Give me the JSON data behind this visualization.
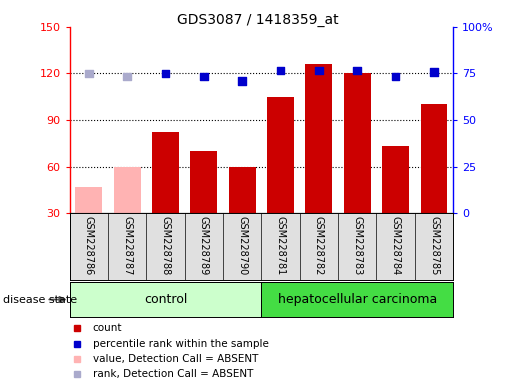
{
  "title": "GDS3087 / 1418359_at",
  "samples": [
    "GSM228786",
    "GSM228787",
    "GSM228788",
    "GSM228789",
    "GSM228790",
    "GSM228781",
    "GSM228782",
    "GSM228783",
    "GSM228784",
    "GSM228785"
  ],
  "bar_values": [
    47,
    60,
    82,
    70,
    60,
    105,
    126,
    120,
    73,
    100
  ],
  "bar_absent": [
    true,
    true,
    false,
    false,
    false,
    false,
    false,
    false,
    false,
    false
  ],
  "dot_values": [
    120,
    118,
    120,
    118,
    115,
    122,
    122,
    122,
    118,
    121
  ],
  "dot_absent": [
    true,
    true,
    false,
    false,
    false,
    false,
    false,
    false,
    false,
    false
  ],
  "left_ylim": [
    30,
    150
  ],
  "left_yticks": [
    30,
    60,
    90,
    120,
    150
  ],
  "right_ylim": [
    0,
    100
  ],
  "right_yticks": [
    0,
    25,
    50,
    75,
    100
  ],
  "right_yticklabels": [
    "0",
    "25",
    "50",
    "75",
    "100%"
  ],
  "bar_color_normal": "#cc0000",
  "bar_color_absent": "#ffb3b3",
  "dot_color_normal": "#0000cc",
  "dot_color_absent": "#aaaacc",
  "control_bg": "#ccffcc",
  "cancer_bg": "#44dd44",
  "dotgrid_values": [
    60,
    90,
    120
  ],
  "bar_width": 0.7,
  "n_control": 5,
  "n_cancer": 5,
  "legend_items": [
    {
      "color": "#cc0000",
      "label": "count"
    },
    {
      "color": "#0000cc",
      "label": "percentile rank within the sample"
    },
    {
      "color": "#ffb3b3",
      "label": "value, Detection Call = ABSENT"
    },
    {
      "color": "#aaaacc",
      "label": "rank, Detection Call = ABSENT"
    }
  ]
}
